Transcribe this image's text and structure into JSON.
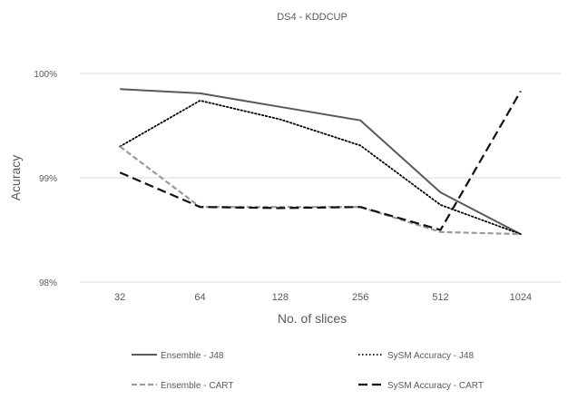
{
  "chart_data": {
    "type": "line",
    "title": "DS4 - KDDCUP",
    "xlabel": "No. of slices",
    "ylabel": "Acuracy",
    "categories": [
      "32",
      "64",
      "128",
      "256",
      "512",
      "1024"
    ],
    "y_ticks": [
      {
        "value": 0.98,
        "label": "98%"
      },
      {
        "value": 0.99,
        "label": "99%"
      },
      {
        "value": 1.0,
        "label": "100%"
      }
    ],
    "ylim": [
      0.98,
      1.0
    ],
    "grid": true,
    "legend_position": "bottom",
    "series": [
      {
        "name": "Ensemble - J48",
        "values": [
          0.9985,
          0.9981,
          0.9968,
          0.9955,
          0.9886,
          0.9846
        ],
        "color": "#595959",
        "dash": "solid"
      },
      {
        "name": "SySM Accuracy - J48",
        "values": [
          0.993,
          0.9974,
          0.9956,
          0.9931,
          0.9874,
          0.9846
        ],
        "color": "#000000",
        "dash": "dotted"
      },
      {
        "name": "Ensemble - CART",
        "values": [
          0.993,
          0.9872,
          0.9872,
          0.9872,
          0.9848,
          0.9846
        ],
        "color": "#9a9a9a",
        "dash": "dashed"
      },
      {
        "name": "SySM Accuracy - CART",
        "values": [
          0.9905,
          0.9872,
          0.9871,
          0.9872,
          0.985,
          0.9983
        ],
        "color": "#111111",
        "dash": "longdash"
      }
    ]
  }
}
